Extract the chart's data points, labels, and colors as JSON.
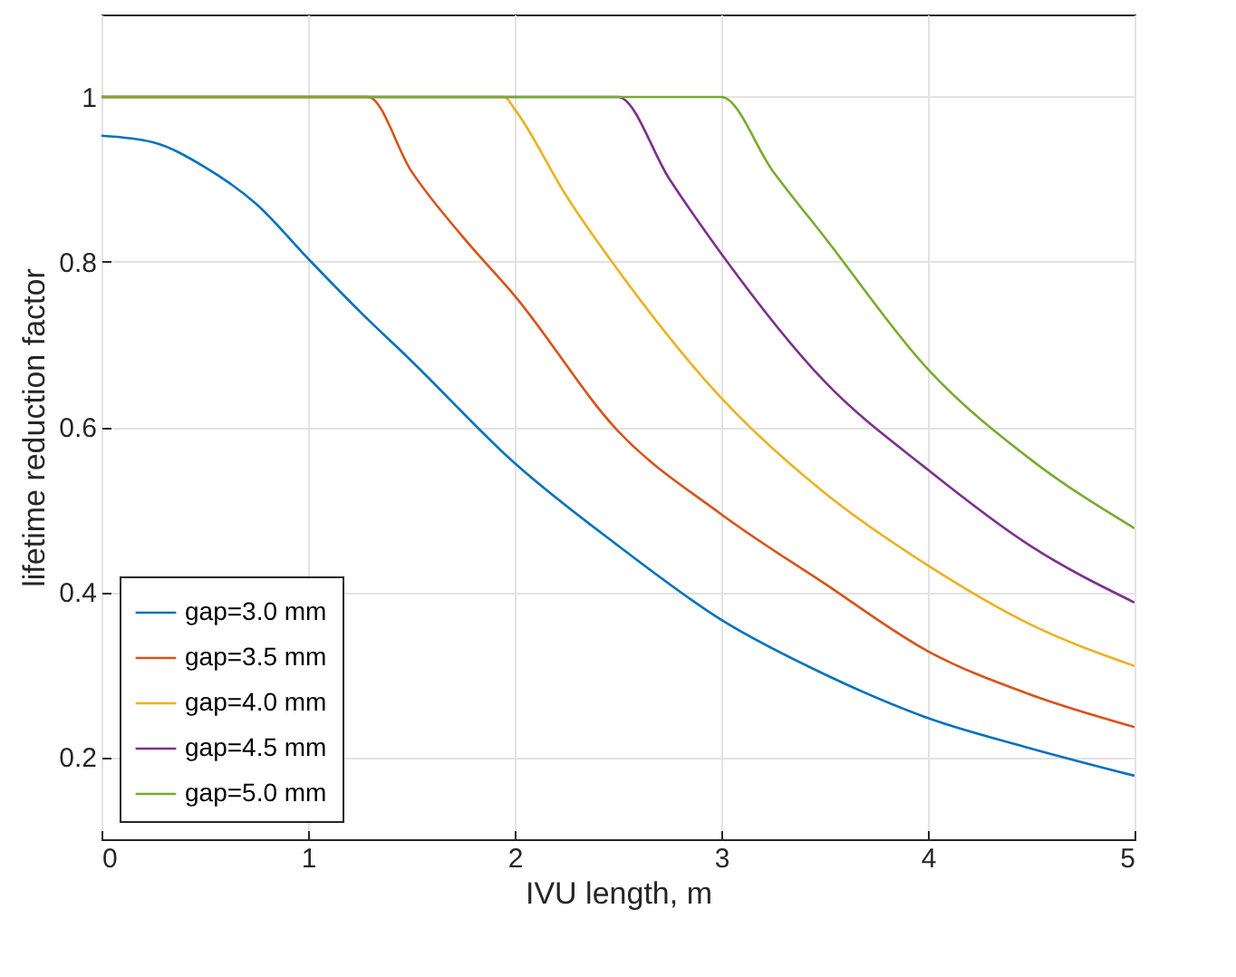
{
  "chart_data": {
    "type": "line",
    "xlabel": "IVU length, m",
    "ylabel": "lifetime reduction factor",
    "xlim": [
      0,
      5
    ],
    "ylim": [
      0.1,
      1.1
    ],
    "xticks": [
      0,
      1,
      2,
      3,
      4,
      5
    ],
    "yticks": [
      0.2,
      0.4,
      0.6,
      0.8,
      1
    ],
    "grid": true,
    "legend": "bottom left",
    "series": [
      {
        "name": "gap=3.0 mm",
        "color": "#0072bd",
        "x": [
          0,
          0.25,
          0.5,
          0.75,
          1,
          1.25,
          1.5,
          2,
          2.5,
          3,
          3.5,
          4,
          4.5,
          5
        ],
        "values": [
          0.953,
          0.945,
          0.915,
          0.87,
          0.804,
          0.74,
          0.68,
          0.556,
          0.456,
          0.366,
          0.3,
          0.247,
          0.21,
          0.177
        ]
      },
      {
        "name": "gap=3.5 mm",
        "color": "#d95319",
        "x": [
          0,
          1.29,
          1.5,
          1.75,
          2,
          2.5,
          3,
          3.5,
          4,
          4.5,
          5
        ],
        "values": [
          1,
          1,
          0.91,
          0.83,
          0.759,
          0.595,
          0.494,
          0.41,
          0.328,
          0.275,
          0.236
        ]
      },
      {
        "name": "gap=4.0 mm",
        "color": "#edb120",
        "x": [
          0,
          1.95,
          2,
          2.25,
          2.5,
          3,
          3.5,
          4,
          4.5,
          5
        ],
        "values": [
          1,
          1,
          0.985,
          0.88,
          0.79,
          0.635,
          0.52,
          0.432,
          0.36,
          0.31
        ]
      },
      {
        "name": "gap=4.5 mm",
        "color": "#7e2f8e",
        "x": [
          0,
          2.5,
          2.75,
          3,
          3.5,
          4,
          4.5,
          5
        ],
        "values": [
          1,
          1,
          0.9,
          0.81,
          0.655,
          0.548,
          0.455,
          0.387
        ]
      },
      {
        "name": "gap=5.0 mm",
        "color": "#77ac30",
        "x": [
          0,
          3,
          3.25,
          3.5,
          4,
          4.5,
          5
        ],
        "values": [
          1,
          1,
          0.91,
          0.83,
          0.67,
          0.56,
          0.477
        ]
      }
    ]
  }
}
